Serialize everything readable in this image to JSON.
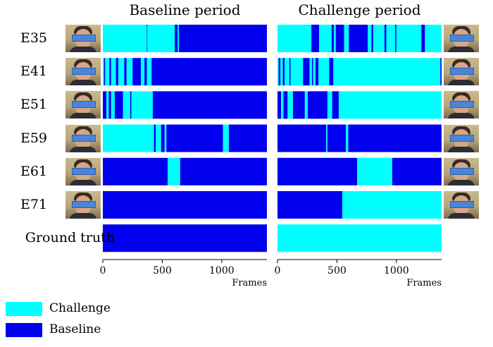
{
  "chart_data": {
    "type": "bar",
    "panels": [
      {
        "title": "Baseline period",
        "xlabel": "Frames",
        "xlim": [
          0,
          1380
        ],
        "xticks": [
          0,
          500,
          1000
        ],
        "rows": [
          {
            "label": "E35",
            "segments": [
              [
                0,
                370,
                "Challenge"
              ],
              [
                370,
                375,
                "Baseline"
              ],
              [
                375,
                605,
                "Challenge"
              ],
              [
                605,
                630,
                "Baseline"
              ],
              [
                630,
                640,
                "Challenge"
              ],
              [
                640,
                1380,
                "Baseline"
              ]
            ]
          },
          {
            "label": "E41",
            "segments": [
              [
                0,
                10,
                "Challenge"
              ],
              [
                10,
                20,
                "Baseline"
              ],
              [
                20,
                55,
                "Challenge"
              ],
              [
                55,
                70,
                "Baseline"
              ],
              [
                70,
                110,
                "Challenge"
              ],
              [
                110,
                130,
                "Baseline"
              ],
              [
                130,
                180,
                "Challenge"
              ],
              [
                180,
                200,
                "Baseline"
              ],
              [
                200,
                250,
                "Challenge"
              ],
              [
                250,
                320,
                "Baseline"
              ],
              [
                320,
                350,
                "Challenge"
              ],
              [
                350,
                370,
                "Baseline"
              ],
              [
                370,
                410,
                "Challenge"
              ],
              [
                410,
                1380,
                "Baseline"
              ]
            ]
          },
          {
            "label": "E51",
            "segments": [
              [
                0,
                30,
                "Baseline"
              ],
              [
                30,
                50,
                "Challenge"
              ],
              [
                50,
                70,
                "Baseline"
              ],
              [
                70,
                100,
                "Challenge"
              ],
              [
                100,
                170,
                "Baseline"
              ],
              [
                170,
                230,
                "Challenge"
              ],
              [
                230,
                240,
                "Baseline"
              ],
              [
                240,
                420,
                "Challenge"
              ],
              [
                420,
                1380,
                "Baseline"
              ]
            ]
          },
          {
            "label": "E59",
            "segments": [
              [
                0,
                430,
                "Challenge"
              ],
              [
                430,
                445,
                "Baseline"
              ],
              [
                445,
                490,
                "Challenge"
              ],
              [
                490,
                520,
                "Baseline"
              ],
              [
                520,
                535,
                "Challenge"
              ],
              [
                535,
                1010,
                "Baseline"
              ],
              [
                1010,
                1060,
                "Challenge"
              ],
              [
                1060,
                1380,
                "Baseline"
              ]
            ]
          },
          {
            "label": "E61",
            "segments": [
              [
                0,
                545,
                "Baseline"
              ],
              [
                545,
                650,
                "Challenge"
              ],
              [
                650,
                1380,
                "Baseline"
              ]
            ]
          },
          {
            "label": "E71",
            "segments": [
              [
                0,
                1380,
                "Baseline"
              ]
            ]
          },
          {
            "label": "Ground truth",
            "segments": [
              [
                0,
                1380,
                "Baseline"
              ]
            ]
          }
        ]
      },
      {
        "title": "Challenge period",
        "xlabel": "Frames",
        "xlim": [
          0,
          1380
        ],
        "xticks": [
          0,
          500,
          1000
        ],
        "rows": [
          {
            "label": "E35",
            "segments": [
              [
                0,
                285,
                "Challenge"
              ],
              [
                285,
                350,
                "Baseline"
              ],
              [
                350,
                455,
                "Challenge"
              ],
              [
                455,
                475,
                "Baseline"
              ],
              [
                475,
                490,
                "Challenge"
              ],
              [
                490,
                560,
                "Baseline"
              ],
              [
                560,
                600,
                "Challenge"
              ],
              [
                600,
                760,
                "Baseline"
              ],
              [
                760,
                790,
                "Challenge"
              ],
              [
                790,
                805,
                "Baseline"
              ],
              [
                805,
                900,
                "Challenge"
              ],
              [
                900,
                915,
                "Baseline"
              ],
              [
                915,
                990,
                "Challenge"
              ],
              [
                990,
                1000,
                "Baseline"
              ],
              [
                1000,
                1210,
                "Challenge"
              ],
              [
                1210,
                1240,
                "Baseline"
              ],
              [
                1240,
                1380,
                "Challenge"
              ]
            ]
          },
          {
            "label": "E41",
            "segments": [
              [
                0,
                10,
                "Challenge"
              ],
              [
                10,
                25,
                "Baseline"
              ],
              [
                25,
                45,
                "Challenge"
              ],
              [
                45,
                60,
                "Baseline"
              ],
              [
                60,
                100,
                "Challenge"
              ],
              [
                100,
                110,
                "Baseline"
              ],
              [
                110,
                215,
                "Challenge"
              ],
              [
                215,
                270,
                "Baseline"
              ],
              [
                270,
                290,
                "Challenge"
              ],
              [
                290,
                300,
                "Baseline"
              ],
              [
                300,
                320,
                "Challenge"
              ],
              [
                320,
                345,
                "Baseline"
              ],
              [
                345,
                435,
                "Challenge"
              ],
              [
                435,
                470,
                "Baseline"
              ],
              [
                470,
                1370,
                "Challenge"
              ],
              [
                1370,
                1380,
                "Baseline"
              ]
            ]
          },
          {
            "label": "E51",
            "segments": [
              [
                0,
                30,
                "Baseline"
              ],
              [
                30,
                50,
                "Challenge"
              ],
              [
                50,
                85,
                "Baseline"
              ],
              [
                85,
                130,
                "Challenge"
              ],
              [
                130,
                230,
                "Baseline"
              ],
              [
                230,
                255,
                "Challenge"
              ],
              [
                255,
                420,
                "Baseline"
              ],
              [
                420,
                460,
                "Challenge"
              ],
              [
                460,
                515,
                "Baseline"
              ],
              [
                515,
                1380,
                "Challenge"
              ]
            ]
          },
          {
            "label": "E59",
            "segments": [
              [
                0,
                410,
                "Baseline"
              ],
              [
                410,
                420,
                "Challenge"
              ],
              [
                420,
                575,
                "Baseline"
              ],
              [
                575,
                595,
                "Challenge"
              ],
              [
                595,
                1380,
                "Baseline"
              ]
            ]
          },
          {
            "label": "E61",
            "segments": [
              [
                0,
                670,
                "Baseline"
              ],
              [
                670,
                965,
                "Challenge"
              ],
              [
                965,
                1380,
                "Baseline"
              ]
            ]
          },
          {
            "label": "E71",
            "segments": [
              [
                0,
                545,
                "Baseline"
              ],
              [
                545,
                1380,
                "Challenge"
              ]
            ]
          },
          {
            "label": "Ground truth",
            "segments": [
              [
                0,
                1380,
                "Challenge"
              ]
            ]
          }
        ]
      }
    ],
    "legend": {
      "placement": "bottom-left",
      "entries": [
        {
          "name": "Challenge",
          "color": "#00ffff"
        },
        {
          "name": "Baseline",
          "color": "#0000ee"
        }
      ]
    },
    "colors": {
      "Challenge": "#00ffff",
      "Baseline": "#0000ee"
    },
    "row_labels": [
      "E35",
      "E41",
      "E51",
      "E59",
      "E61",
      "E71",
      "Ground truth"
    ],
    "face_icons": "participant-face-photo-icon"
  }
}
